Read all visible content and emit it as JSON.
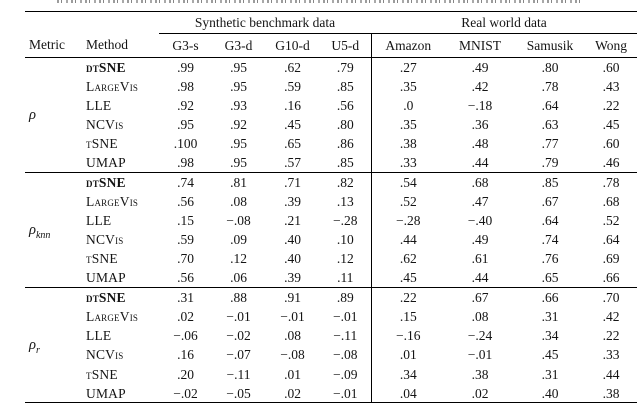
{
  "table": {
    "group_headers": [
      {
        "label": "Synthetic benchmark data"
      },
      {
        "label": "Real world data"
      }
    ],
    "columns": [
      "Metric",
      "Method",
      "G3-s",
      "G3-d",
      "G10-d",
      "U5-d",
      "Amazon",
      "MNIST",
      "Samusik",
      "Wong"
    ],
    "groups": [
      {
        "metric": {
          "base": "ρ",
          "sub": ""
        },
        "rows": [
          {
            "method": "dtSNE",
            "bold": true,
            "values": [
              ".99",
              ".95",
              ".62",
              ".79",
              ".27",
              ".49",
              ".80",
              ".60"
            ]
          },
          {
            "method": "LargeVis",
            "bold": false,
            "values": [
              ".98",
              ".95",
              ".59",
              ".85",
              ".35",
              ".42",
              ".78",
              ".43"
            ]
          },
          {
            "method": "LLE",
            "bold": false,
            "values": [
              ".92",
              ".93",
              ".16",
              ".56",
              ".0",
              "−.18",
              ".64",
              ".22"
            ]
          },
          {
            "method": "NCVis",
            "bold": false,
            "values": [
              ".95",
              ".92",
              ".45",
              ".80",
              ".35",
              ".36",
              ".63",
              ".45"
            ]
          },
          {
            "method": "tSNE",
            "bold": false,
            "values": [
              ".100",
              ".95",
              ".65",
              ".86",
              ".38",
              ".48",
              ".77",
              ".60"
            ]
          },
          {
            "method": "UMAP",
            "bold": false,
            "values": [
              ".98",
              ".95",
              ".57",
              ".85",
              ".33",
              ".44",
              ".79",
              ".46"
            ]
          }
        ]
      },
      {
        "metric": {
          "base": "ρ",
          "sub": "knn"
        },
        "rows": [
          {
            "method": "dtSNE",
            "bold": true,
            "values": [
              ".74",
              ".81",
              ".71",
              ".82",
              ".54",
              ".68",
              ".85",
              ".78"
            ]
          },
          {
            "method": "LargeVis",
            "bold": false,
            "values": [
              ".56",
              ".08",
              ".39",
              ".13",
              ".52",
              ".47",
              ".67",
              ".68"
            ]
          },
          {
            "method": "LLE",
            "bold": false,
            "values": [
              ".15",
              "−.08",
              ".21",
              "−.28",
              "−.28",
              "−.40",
              ".64",
              ".52"
            ]
          },
          {
            "method": "NCVis",
            "bold": false,
            "values": [
              ".59",
              ".09",
              ".40",
              ".10",
              ".44",
              ".49",
              ".74",
              ".64"
            ]
          },
          {
            "method": "tSNE",
            "bold": false,
            "values": [
              ".70",
              ".12",
              ".40",
              ".12",
              ".62",
              ".61",
              ".76",
              ".69"
            ]
          },
          {
            "method": "UMAP",
            "bold": false,
            "values": [
              ".56",
              ".06",
              ".39",
              ".11",
              ".45",
              ".44",
              ".65",
              ".66"
            ]
          }
        ]
      },
      {
        "metric": {
          "base": "ρ",
          "sub": "r"
        },
        "rows": [
          {
            "method": "dtSNE",
            "bold": true,
            "values": [
              ".31",
              ".88",
              ".91",
              ".89",
              ".22",
              ".67",
              ".66",
              ".70"
            ]
          },
          {
            "method": "LargeVis",
            "bold": false,
            "values": [
              ".02",
              "−.01",
              "−.01",
              "−.01",
              ".15",
              ".08",
              ".31",
              ".42"
            ]
          },
          {
            "method": "LLE",
            "bold": false,
            "values": [
              "−.06",
              "−.02",
              ".08",
              "−.11",
              "−.16",
              "−.24",
              ".34",
              ".22"
            ]
          },
          {
            "method": "NCVis",
            "bold": false,
            "values": [
              ".16",
              "−.07",
              "−.08",
              "−.08",
              ".01",
              "−.01",
              ".45",
              ".33"
            ]
          },
          {
            "method": "tSNE",
            "bold": false,
            "values": [
              ".20",
              "−.11",
              ".01",
              "−.09",
              ".34",
              ".38",
              ".31",
              ".44"
            ]
          },
          {
            "method": "UMAP",
            "bold": false,
            "values": [
              "−.02",
              "−.05",
              ".02",
              "−.01",
              ".04",
              ".02",
              ".40",
              ".38"
            ]
          }
        ]
      }
    ]
  }
}
